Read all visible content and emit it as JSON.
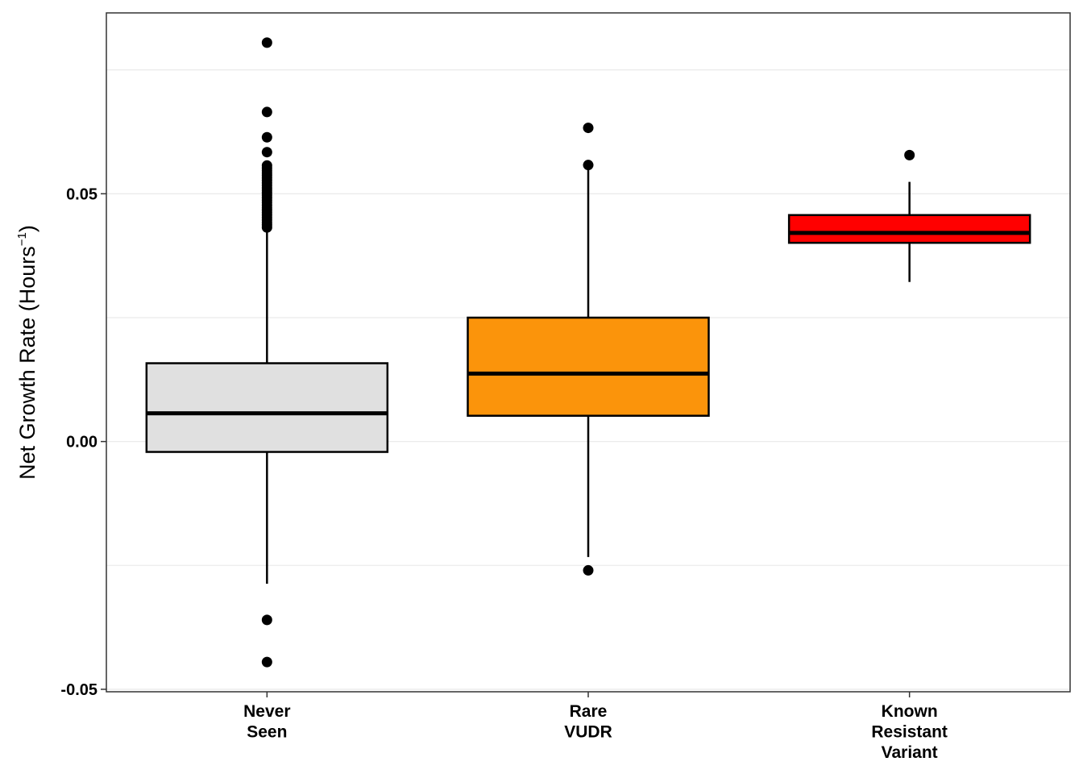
{
  "chart_data": {
    "type": "box",
    "ylabel": {
      "text": "Net Growth Rate ",
      "paren_open": "(",
      "unit": "Hours",
      "exponent": "−1",
      "paren_close": ")"
    },
    "xlabel": "",
    "ylim": [
      -0.0505,
      0.0865
    ],
    "y_ticks": [
      {
        "value": -0.05,
        "label": "-0.05"
      },
      {
        "value": 0.0,
        "label": "0.00"
      },
      {
        "value": 0.05,
        "label": "0.05"
      }
    ],
    "y_minor_grid": [
      -0.025,
      0.025,
      0.075
    ],
    "grid": "horizontal",
    "series": [
      {
        "category": [
          "Never",
          "Seen"
        ],
        "fill": "#e0e0e0",
        "q1": -0.0021,
        "median": 0.0057,
        "q3": 0.0158,
        "whisker_low": -0.0287,
        "whisker_high": 0.0428,
        "outliers": [
          0.0805,
          0.0665,
          0.0614,
          0.0584,
          0.0557,
          0.0552,
          0.0547,
          0.0542,
          0.0537,
          0.0532,
          0.0527,
          0.0522,
          0.0517,
          0.0512,
          0.0507,
          0.0502,
          0.0497,
          0.0492,
          0.0487,
          0.0482,
          0.0477,
          0.0472,
          0.0467,
          0.0462,
          0.0457,
          0.0452,
          0.0447,
          0.0442,
          0.0437,
          0.0432,
          -0.036,
          -0.0445
        ]
      },
      {
        "category": [
          "Rare",
          "VUDR"
        ],
        "fill": "#fb940b",
        "q1": 0.0052,
        "median": 0.0137,
        "q3": 0.025,
        "whisker_low": -0.0233,
        "whisker_high": 0.0548,
        "outliers": [
          0.0633,
          0.0558,
          -0.026
        ]
      },
      {
        "category": [
          "Known",
          "Resistant",
          "Variant"
        ],
        "fill": "#ff0000",
        "q1": 0.0401,
        "median": 0.0421,
        "q3": 0.0457,
        "whisker_low": 0.0322,
        "whisker_high": 0.0524,
        "outliers": [
          0.0578
        ]
      }
    ]
  }
}
